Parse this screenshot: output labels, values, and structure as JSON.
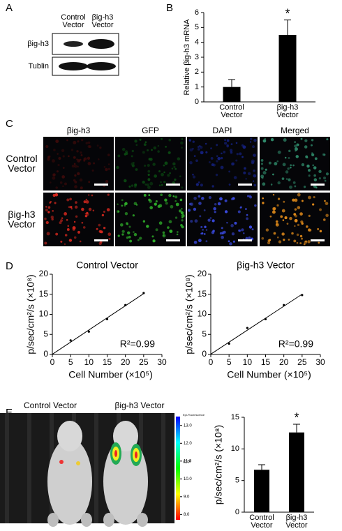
{
  "panel_labels": [
    "A",
    "B",
    "C",
    "D",
    "E"
  ],
  "panel_a": {
    "columns": [
      "Control Vector",
      "βig-h3 Vector"
    ],
    "rows": [
      "βig-h3",
      "Tublin"
    ]
  },
  "panel_c": {
    "columns": [
      "βig-h3",
      "GFP",
      "DAPI",
      "Merged"
    ],
    "rows": [
      "Control Vector",
      "βig-h3 Vector"
    ]
  },
  "panel_e_image": {
    "groups": [
      "Control Vector",
      "βig-h3 Vector"
    ],
    "colorbar_title": "Epi-Fluorescence",
    "colorbar_unit": "x10⁸",
    "colorbar_ticks": [
      {
        "value": 13,
        "label": "13.0"
      },
      {
        "value": 12,
        "label": "12.0"
      },
      {
        "value": 11,
        "label": "11.0"
      },
      {
        "value": 10,
        "label": "10.0"
      },
      {
        "value": 9,
        "label": "9.0"
      },
      {
        "value": 8,
        "label": "8.0"
      }
    ],
    "colorbar_lim": [
      7.7,
      13.5
    ]
  },
  "chart_data": [
    {
      "type": "bar",
      "y_label": "Relative βig-h3 mRNA",
      "categories": [
        "Control Vector",
        "βig-h3 Vector"
      ],
      "values": [
        1,
        4.5
      ],
      "errors": [
        0.5,
        1.0
      ],
      "color": "#000000",
      "ylim": [
        0,
        6
      ],
      "yticks": [
        0,
        1,
        2,
        3,
        4,
        5,
        6
      ],
      "annotation": "*"
    },
    {
      "type": "scatter",
      "title": "Control Vector",
      "x_label": "Cell Number (×10⁵)",
      "y_label": "p/sec/cm²/s (×10⁸)",
      "x": [
        5,
        10,
        15,
        20,
        25
      ],
      "values": [
        3.5,
        5.7,
        8.8,
        12.3,
        15.3
      ],
      "color": "#000000",
      "xlim": [
        0,
        30
      ],
      "xticks": [
        0,
        5,
        10,
        15,
        20,
        25,
        30
      ],
      "ylim": [
        0,
        20
      ],
      "yticks": [
        0,
        5,
        10,
        15,
        20
      ],
      "annotation": "R²=0.99"
    },
    {
      "type": "scatter",
      "title": "βig-h3 Vector",
      "x_label": "Cell Number (×10⁵)",
      "y_label": "p/sec/cm²/s (×10⁸)",
      "x": [
        5,
        10,
        15,
        20,
        25
      ],
      "values": [
        2.7,
        6.6,
        8.8,
        12.3,
        14.8
      ],
      "color": "#000000",
      "xlim": [
        0,
        30
      ],
      "xticks": [
        0,
        5,
        10,
        15,
        20,
        25,
        30
      ],
      "ylim": [
        0,
        20
      ],
      "yticks": [
        0,
        5,
        10,
        15,
        20
      ],
      "annotation": "R²=0.99"
    },
    {
      "type": "bar",
      "y_label": "p/sec/cm²/s (×10⁸)",
      "categories": [
        "Control Vector",
        "βig-h3 Vector"
      ],
      "values": [
        6.7,
        12.6
      ],
      "errors": [
        0.8,
        1.3
      ],
      "color": "#000000",
      "ylim": [
        0,
        15
      ],
      "yticks": [
        0,
        5,
        10,
        15
      ],
      "annotation": "*"
    }
  ]
}
